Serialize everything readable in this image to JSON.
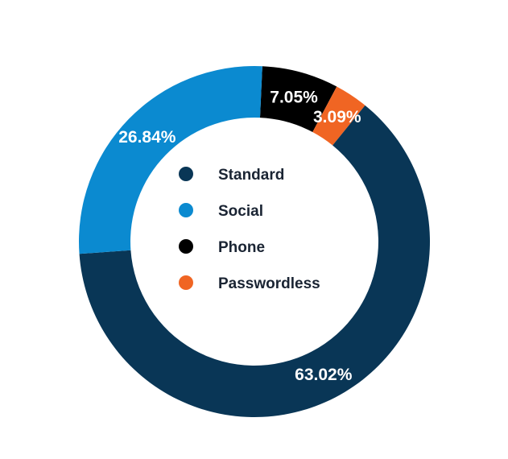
{
  "chart_data": {
    "type": "pie",
    "variant": "donut",
    "title": "",
    "legend_position": "center",
    "slices": [
      {
        "name": "Standard",
        "value": 63.02,
        "label": "63.02%",
        "color": "#093656"
      },
      {
        "name": "Social",
        "value": 26.84,
        "label": "26.84%",
        "color": "#0b8ad0"
      },
      {
        "name": "Phone",
        "value": 7.05,
        "label": "7.05%",
        "color": "#000000"
      },
      {
        "name": "Passwordless",
        "value": 3.09,
        "label": "3.09%",
        "color": "#f06523"
      }
    ]
  }
}
